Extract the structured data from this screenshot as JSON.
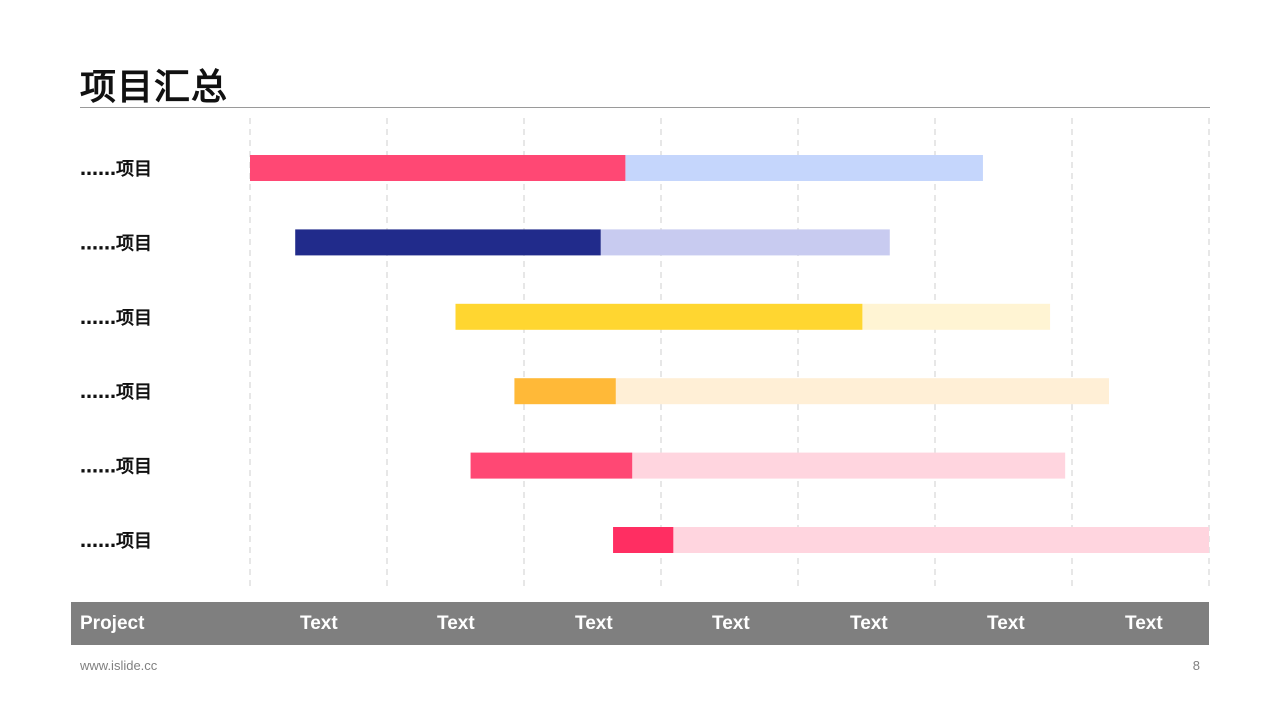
{
  "page": {
    "title": "项目汇总",
    "website": "www.islide.cc",
    "page_number": "8"
  },
  "chart_data": {
    "type": "gantt",
    "x_axis": {
      "header_label": "Project",
      "tick_labels": [
        "Text",
        "Text",
        "Text",
        "Text",
        "Text",
        "Text",
        "Text"
      ],
      "range": [
        0,
        7
      ],
      "grid": "vertical-dashed"
    },
    "tasks": [
      {
        "label": "……项目",
        "start": 0.0,
        "progress_end": 2.74,
        "end": 5.35,
        "color": "#FF4874",
        "light_color": "#C5D6FC"
      },
      {
        "label": "……项目",
        "start": 0.33,
        "progress_end": 2.56,
        "end": 4.67,
        "color": "#212B8B",
        "light_color": "#C8CBF0"
      },
      {
        "label": "……项目",
        "start": 1.5,
        "progress_end": 4.47,
        "end": 5.84,
        "color": "#FFD630",
        "light_color": "#FFF4D3"
      },
      {
        "label": "……项目",
        "start": 1.93,
        "progress_end": 2.67,
        "end": 6.27,
        "color": "#FFB938",
        "light_color": "#FFEFD6"
      },
      {
        "label": "……项目",
        "start": 1.61,
        "progress_end": 2.79,
        "end": 5.95,
        "color": "#FF4874",
        "light_color": "#FFD5DF"
      },
      {
        "label": "……项目",
        "start": 2.65,
        "progress_end": 3.09,
        "end": 7.0,
        "color": "#FF2E62",
        "light_color": "#FFD5DF"
      }
    ]
  }
}
